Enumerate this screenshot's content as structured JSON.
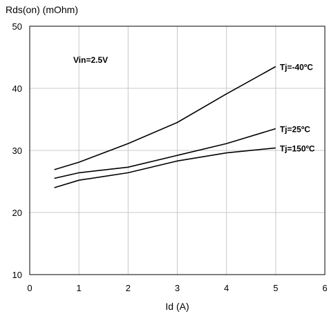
{
  "chart_data": {
    "type": "line",
    "title": "",
    "xlabel": "Id (A)",
    "ylabel": "Rds(on) (mOhm)",
    "xlim": [
      0,
      6
    ],
    "ylim": [
      10,
      50
    ],
    "x_ticks": [
      0,
      1,
      2,
      3,
      4,
      5,
      6
    ],
    "y_ticks": [
      10,
      20,
      30,
      40,
      50
    ],
    "grid": true,
    "annotation": "Vin=2.5V",
    "series": [
      {
        "name": "Tj=-40ºC",
        "x": [
          0.5,
          1,
          2,
          3,
          4,
          5
        ],
        "y": [
          26.9,
          28.1,
          31.1,
          34.5,
          39.1,
          43.5
        ]
      },
      {
        "name": "Tj=25ºC",
        "x": [
          0.5,
          1,
          2,
          3,
          4,
          5
        ],
        "y": [
          25.5,
          26.4,
          27.3,
          29.2,
          31.1,
          33.5
        ]
      },
      {
        "name": "Tj=150ºC",
        "x": [
          0.5,
          1,
          2,
          3,
          4,
          5
        ],
        "y": [
          24.0,
          25.2,
          26.4,
          28.3,
          29.6,
          30.4
        ]
      }
    ]
  }
}
